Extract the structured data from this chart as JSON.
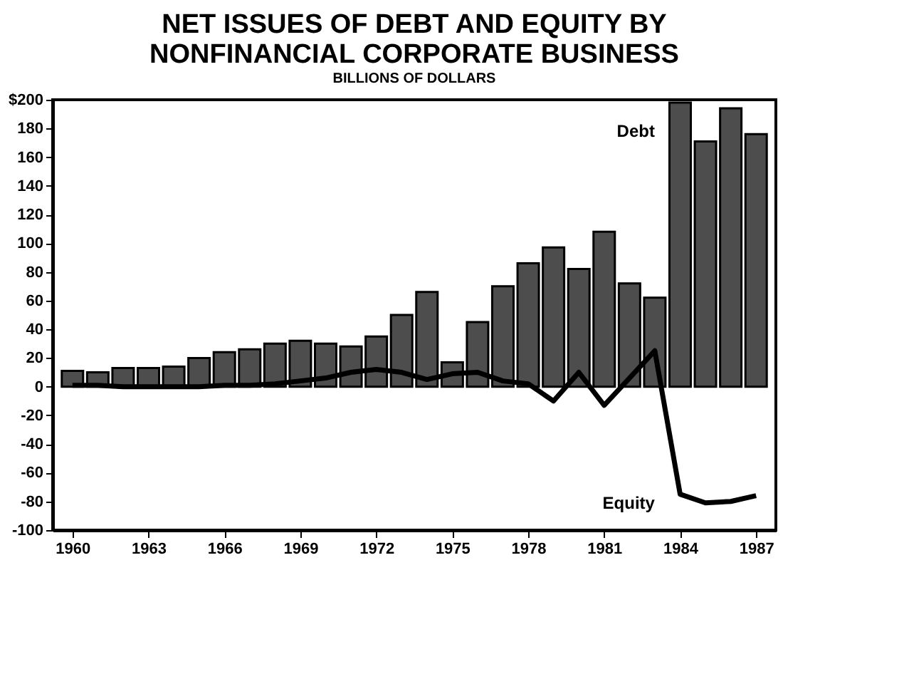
{
  "chart_data": {
    "type": "bar",
    "title": [
      "NET ISSUES OF DEBT AND EQUITY BY",
      "NONFINANCIAL CORPORATE BUSINESS"
    ],
    "subtitle": "BILLIONS OF DOLLARS",
    "x": [
      1960,
      1961,
      1962,
      1963,
      1964,
      1965,
      1966,
      1967,
      1968,
      1969,
      1970,
      1971,
      1972,
      1973,
      1974,
      1975,
      1976,
      1977,
      1978,
      1979,
      1980,
      1981,
      1982,
      1983,
      1984,
      1985,
      1986,
      1987
    ],
    "series": [
      {
        "name": "Debt",
        "color": "#4d4d4d",
        "values": [
          11,
          10,
          13,
          13,
          14,
          20,
          24,
          26,
          30,
          32,
          30,
          28,
          35,
          50,
          66,
          17,
          45,
          70,
          86,
          97,
          82,
          108,
          72,
          62,
          198,
          171,
          194,
          176
        ]
      },
      {
        "name": "Equity",
        "type": "line",
        "color": "#000000",
        "values": [
          1,
          1,
          0,
          0,
          0,
          0,
          1,
          1,
          2,
          4,
          6,
          10,
          12,
          10,
          5,
          9,
          10,
          4,
          2,
          -10,
          10,
          -13,
          6,
          25,
          -75,
          -81,
          -80,
          -76
        ]
      }
    ],
    "xlim": [
      1959.5,
      1987.5
    ],
    "xticks": [
      1960,
      1963,
      1966,
      1969,
      1972,
      1975,
      1978,
      1981,
      1984,
      1987
    ],
    "ylim": [
      -100,
      200
    ],
    "yticks": [
      -100,
      -80,
      -60,
      -40,
      -20,
      0,
      20,
      40,
      60,
      80,
      100,
      120,
      140,
      160,
      180,
      {
        "value": 200,
        "label": "$200"
      }
    ],
    "grid": false,
    "marker": "none",
    "line_style": "solid"
  }
}
